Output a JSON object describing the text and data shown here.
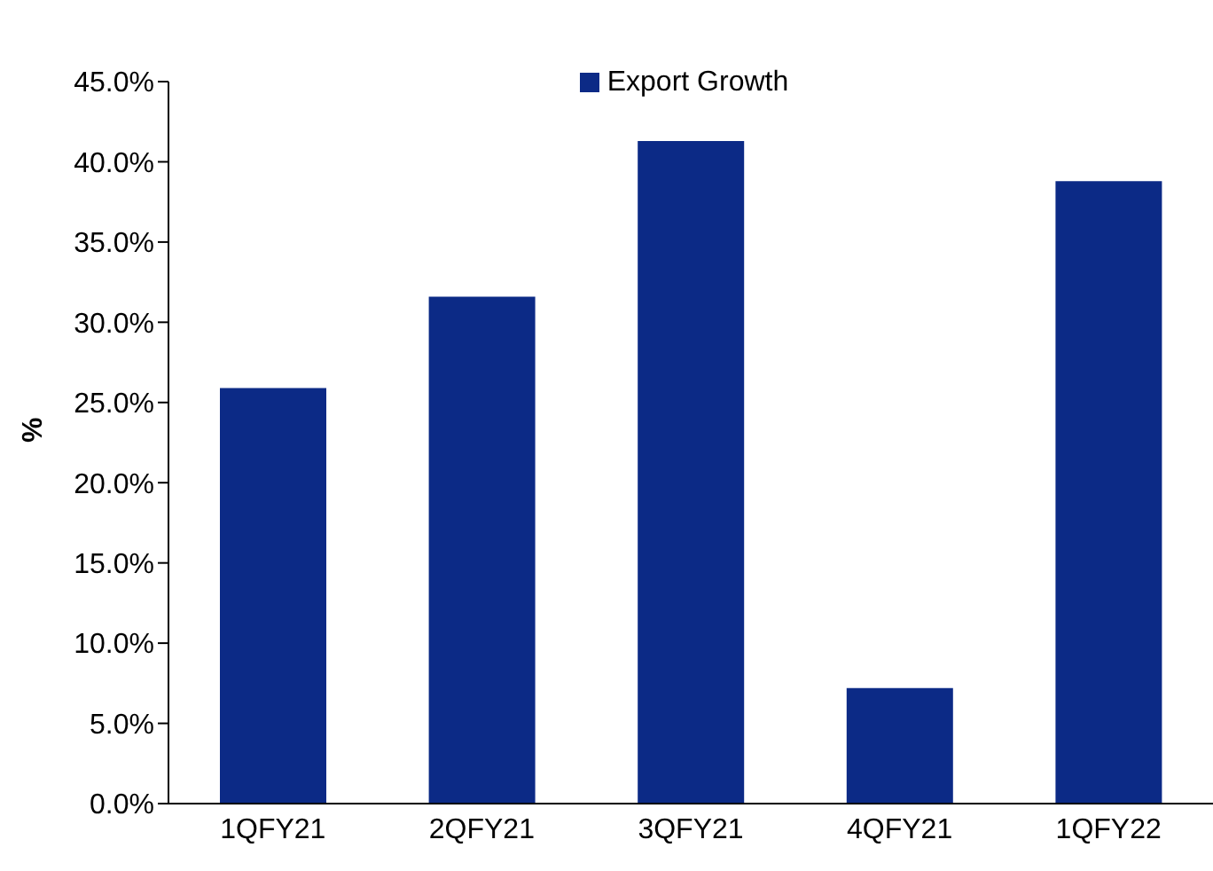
{
  "chart_data": {
    "type": "bar",
    "ylabel": "%",
    "categories": [
      "1QFY21",
      "2QFY21",
      "3QFY21",
      "4QFY21",
      "1QFY22"
    ],
    "series": [
      {
        "name": "Export  Growth",
        "color": "#0c2a86",
        "values": [
          25.9,
          31.6,
          41.3,
          7.2,
          38.8
        ]
      }
    ],
    "ylim": [
      0,
      45
    ],
    "yticks": [
      {
        "value": 0,
        "label": "0.0%"
      },
      {
        "value": 5,
        "label": "5.0%"
      },
      {
        "value": 10,
        "label": "10.0%"
      },
      {
        "value": 15,
        "label": "15.0%"
      },
      {
        "value": 20,
        "label": "20.0%"
      },
      {
        "value": 25,
        "label": "25.0%"
      },
      {
        "value": 30,
        "label": "30.0%"
      },
      {
        "value": 35,
        "label": "35.0%"
      },
      {
        "value": 40,
        "label": "40.0%"
      },
      {
        "value": 45,
        "label": "45.0%"
      }
    ],
    "grid": false,
    "legend": "top"
  }
}
